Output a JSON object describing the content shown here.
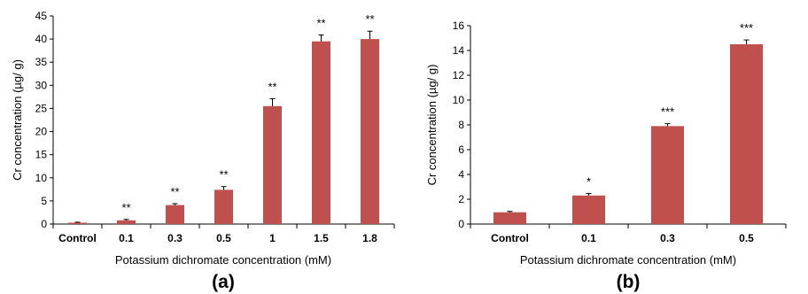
{
  "chart_data": [
    {
      "type": "bar",
      "panel_label": "(a)",
      "xlabel": "Potassium dichromate concentration (mM)",
      "ylabel": "Cr concentration (µg/ g)",
      "ylim": [
        0,
        45
      ],
      "yticks": [
        0,
        5,
        10,
        15,
        20,
        25,
        30,
        35,
        40,
        45
      ],
      "categories": [
        "Control",
        "0.1",
        "0.3",
        "0.5",
        "1",
        "1.5",
        "1.8"
      ],
      "values": [
        0.3,
        0.8,
        4.1,
        7.4,
        25.5,
        39.5,
        40.0
      ],
      "errors": [
        0.1,
        0.2,
        0.3,
        0.7,
        1.6,
        1.4,
        1.7
      ],
      "significance": [
        "",
        "**",
        "**",
        "**",
        "**",
        "**",
        "**"
      ],
      "bar_color": "#c0504d",
      "grid": false
    },
    {
      "type": "bar",
      "panel_label": "(b)",
      "xlabel": "Potassium dichromate concentration (mM)",
      "ylabel": "Cr concentration (µg/ g)",
      "ylim": [
        0,
        16
      ],
      "yticks": [
        0,
        2,
        4,
        6,
        8,
        10,
        12,
        14,
        16
      ],
      "categories": [
        "Control",
        "0.1",
        "0.3",
        "0.5"
      ],
      "values": [
        0.95,
        2.3,
        7.9,
        14.5
      ],
      "errors": [
        0.07,
        0.17,
        0.2,
        0.35
      ],
      "significance": [
        "",
        "*",
        "***",
        "***"
      ],
      "bar_color": "#c0504d",
      "grid": false
    }
  ]
}
